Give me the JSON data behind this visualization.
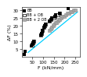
{
  "title": "",
  "xlabel": "F (kN/mm)",
  "ylabel": "ΔF (%)",
  "xlim": [
    0,
    270
  ],
  "ylim": [
    0,
    32
  ],
  "xticks": [
    50,
    100,
    150,
    200,
    250
  ],
  "yticks": [
    5,
    10,
    15,
    20,
    25,
    30
  ],
  "legend": [
    "BB",
    "BB + OB",
    "BB + 2 OB"
  ],
  "series_BB": [
    [
      12,
      1.5
    ],
    [
      18,
      3.5
    ],
    [
      45,
      7
    ],
    [
      48,
      8
    ],
    [
      52,
      9
    ],
    [
      55,
      10
    ],
    [
      90,
      14
    ],
    [
      92,
      15
    ],
    [
      95,
      16
    ],
    [
      98,
      17
    ],
    [
      105,
      19
    ],
    [
      108,
      20
    ],
    [
      112,
      21
    ],
    [
      130,
      23
    ],
    [
      135,
      24
    ],
    [
      140,
      25
    ],
    [
      155,
      26
    ],
    [
      160,
      27
    ],
    [
      175,
      28
    ],
    [
      215,
      31
    ]
  ],
  "series_BB_OB": [
    [
      48,
      8
    ],
    [
      52,
      9
    ],
    [
      55,
      10
    ],
    [
      88,
      14
    ],
    [
      92,
      15
    ],
    [
      95,
      17
    ],
    [
      105,
      19
    ],
    [
      108,
      20
    ],
    [
      112,
      21
    ],
    [
      130,
      23
    ],
    [
      135,
      24
    ],
    [
      150,
      25
    ],
    [
      155,
      26
    ],
    [
      170,
      27
    ],
    [
      175,
      28
    ]
  ],
  "series_BB_2OB": [
    [
      130,
      17
    ],
    [
      135,
      18
    ],
    [
      140,
      19
    ],
    [
      148,
      20
    ],
    [
      152,
      21
    ],
    [
      158,
      22
    ],
    [
      162,
      22
    ],
    [
      168,
      23
    ],
    [
      172,
      24
    ],
    [
      178,
      24
    ],
    [
      185,
      25
    ],
    [
      190,
      26
    ],
    [
      198,
      26
    ],
    [
      205,
      27
    ],
    [
      212,
      28
    ],
    [
      220,
      28
    ],
    [
      228,
      29
    ],
    [
      235,
      29
    ],
    [
      242,
      30
    ],
    [
      250,
      30
    ]
  ],
  "trendline_x": [
    30,
    260
  ],
  "trendline_y": [
    3,
    29
  ],
  "trendline_color": "#00d0ff",
  "bg_color": "#ffffff",
  "marker_size": 5,
  "fontsize": 4.5
}
